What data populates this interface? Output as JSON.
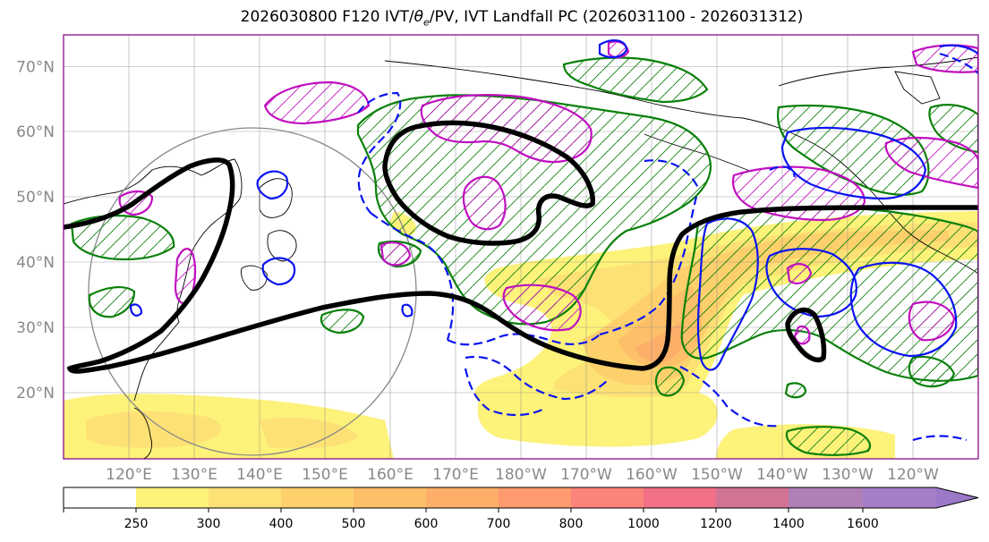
{
  "title": {
    "prefix": "2026030800 F120 IVT/",
    "theta": "θ",
    "theta_sub": "e",
    "suffix": "/PV, IVT Landfall PC (2026031100 - 2026031312)"
  },
  "map": {
    "lat_labels": [
      "70°N",
      "60°N",
      "50°N",
      "40°N",
      "30°N",
      "20°N"
    ],
    "lat_values": [
      70,
      60,
      50,
      40,
      30,
      20
    ],
    "lon_labels": [
      "120°E",
      "130°E",
      "140°E",
      "150°E",
      "160°E",
      "170°E",
      "180°W",
      "170°W",
      "160°W",
      "150°W",
      "140°W",
      "130°W",
      "120°W"
    ],
    "lon_values": [
      120,
      130,
      140,
      150,
      160,
      170,
      180,
      190,
      200,
      210,
      220,
      230,
      240
    ],
    "lat_range": [
      10,
      75
    ],
    "lon_range": [
      110,
      250
    ],
    "axis_label_color": "#888888",
    "contour_colors": {
      "thick_line": "#000000",
      "blue": "#0a14f0",
      "magenta": "#c010c0",
      "green": "#0a800a"
    }
  },
  "colorbar": {
    "tick_labels": [
      "250",
      "300",
      "400",
      "500",
      "600",
      "700",
      "800",
      "1000",
      "1200",
      "1400",
      "1600"
    ],
    "colors": [
      "#ffffff",
      "#fdf27a",
      "#fde175",
      "#fdd06c",
      "#fdc069",
      "#fdaf6a",
      "#fd9a6e",
      "#fb847a",
      "#f27086",
      "#d17394",
      "#b07fb8",
      "#a47ec6",
      "#9b78c8"
    ]
  }
}
